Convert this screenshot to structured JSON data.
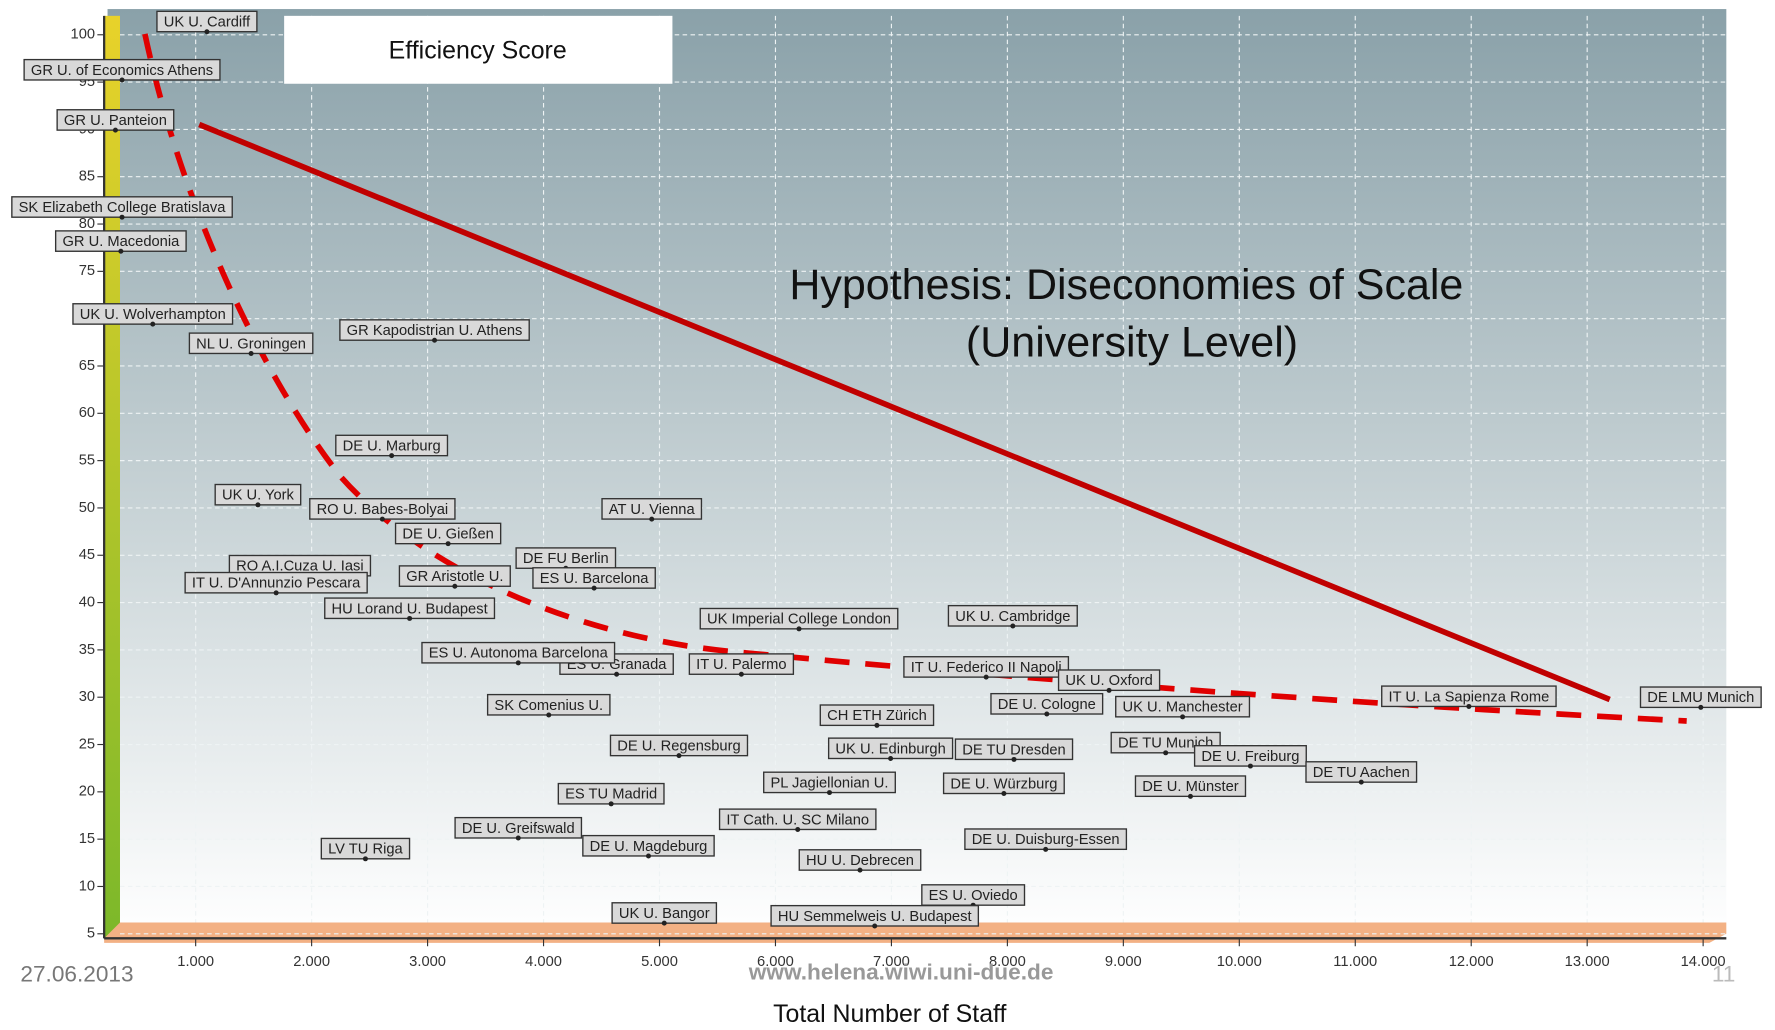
{
  "chart_data": {
    "type": "scatter",
    "y_label": "Efficiency Score",
    "x_label": "Total Number of Staff",
    "annotation": [
      "Hypothesis: Diseconomies of Scale",
      "(University Level)"
    ],
    "footer": {
      "date": "27.06.2013",
      "url": "www.helena.wiwi.uni-due.de",
      "page": "11"
    },
    "xlim": [
      240,
      14200
    ],
    "ylim": [
      5,
      102
    ],
    "xticks": [
      {
        "value": 1000,
        "label": "1.000"
      },
      {
        "value": 2000,
        "label": "2.000"
      },
      {
        "value": 3000,
        "label": "3.000"
      },
      {
        "value": 4000,
        "label": "4.000"
      },
      {
        "value": 5000,
        "label": "5.000"
      },
      {
        "value": 6000,
        "label": "6.000"
      },
      {
        "value": 7000,
        "label": "7.000"
      },
      {
        "value": 8000,
        "label": "8.000"
      },
      {
        "value": 9000,
        "label": "9.000"
      },
      {
        "value": 10000,
        "label": "10.000"
      },
      {
        "value": 11000,
        "label": "11.000"
      },
      {
        "value": 12000,
        "label": "12.000"
      },
      {
        "value": 13000,
        "label": "13.000"
      },
      {
        "value": 14000,
        "label": "14.000"
      }
    ],
    "yticks": [
      5,
      10,
      15,
      20,
      25,
      30,
      35,
      40,
      45,
      50,
      55,
      60,
      65,
      70,
      75,
      80,
      85,
      90,
      95,
      100
    ],
    "grid": true,
    "color": "#222222",
    "point_labels": [
      "UK U. Cardiff",
      "GR U. of Economics Athens",
      "GR U. Panteion",
      "SK Elizabeth College Bratislava",
      "GR U. Macedonia",
      "UK U. Wolverhampton",
      "NL U. Groningen",
      "GR Kapodistrian U. Athens",
      "DE U. Marburg",
      "AT U. Vienna",
      "UK U. York",
      "RO U. Babes-Bolyai",
      "DE U. Gießen",
      "DE FU Berlin",
      "ES U. Barcelona",
      "GR Aristotle U.",
      "HU Lorand U. Budapest",
      "UK Imperial College London",
      "UK U. Cambridge",
      "IT U. Federico II Napoli",
      "UK U. Oxford",
      "DE U. Cologne",
      "UK U. Manchester",
      "IT U. La Sapienza Rome",
      "DE LMU Munich",
      "CH ETH Zürich",
      "DE TU Munich",
      "DE U. Freiburg",
      "DE TU Aachen",
      "DE U. Münster",
      "DE TU Dresden",
      "UK U. Edinburgh",
      "DE U. Würzburg",
      "IT U. Palermo",
      "ES U. Granada",
      "ES TU Madrid",
      "DE U. Regensburg",
      "PL Jagiellonian U.",
      "IT Cath. U. SC Milano",
      "DE U. Magdeburg",
      "HU U. Debrecen",
      "DE U. Duisburg-Essen",
      "ES U. Oviedo",
      "UK U. Bangor",
      "HU Semmelweis U. Budapest",
      "SK Comenius U.",
      "DE U. Greifswald",
      "LV TU Riga",
      "ES U. Autonoma Barcelona",
      "RO A.I.Cuza U. Iasi",
      "IT U. D'Annunzio Pescara"
    ],
    "x": [
      1097,
      365,
      308,
      365,
      355,
      630,
      1478,
      3060,
      2690,
      4933,
      1537,
      2610,
      3177,
      4192,
      4436,
      3235,
      2845,
      6203,
      8047,
      7817,
      8877,
      8340,
      9511,
      11980,
      13980,
      6875,
      9365,
      10096,
      11052,
      9579,
      8057,
      6993,
      7970,
      5706,
      4630,
      4583,
      5168,
      6466,
      6192,
      4905,
      6729,
      8330,
      7705,
      5041,
      6856,
      4045,
      3782,
      2464,
      3782,
      1899,
      1694
    ],
    "values": [
      101.4,
      96.3,
      91.0,
      81.8,
      78.2,
      70.5,
      67.4,
      68.8,
      56.6,
      49.9,
      51.4,
      49.9,
      47.3,
      44.7,
      42.6,
      42.8,
      39.4,
      38.3,
      38.6,
      33.2,
      31.8,
      29.3,
      29.0,
      30.1,
      30.0,
      28.1,
      25.2,
      23.8,
      22.1,
      20.6,
      24.5,
      24.6,
      20.9,
      33.5,
      33.5,
      19.8,
      24.9,
      21.0,
      17.1,
      14.3,
      12.8,
      15.0,
      9.1,
      7.2,
      6.9,
      29.2,
      16.2,
      14.0,
      34.7,
      43.9,
      42.1
    ]
  }
}
